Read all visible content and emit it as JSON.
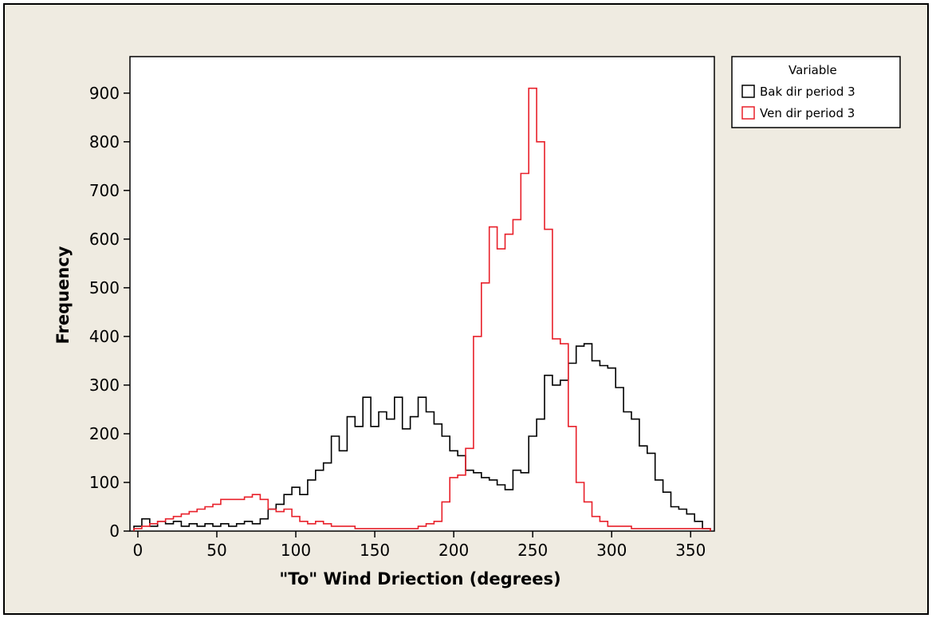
{
  "chart_data": {
    "type": "step-histogram",
    "xlabel": "\"To\" Wind Driection (degrees)",
    "ylabel": "Frequency",
    "xlim": [
      -5,
      365
    ],
    "ylim": [
      0,
      975
    ],
    "xticks": [
      0,
      50,
      100,
      150,
      200,
      250,
      300,
      350
    ],
    "yticks": [
      0,
      100,
      200,
      300,
      400,
      500,
      600,
      700,
      800,
      900
    ],
    "bin_width": 5,
    "legend": {
      "title": "Variable",
      "position": "top-right-outside"
    },
    "colors": {
      "frame_bg": "#efebe1",
      "plot_bg": "#ffffff",
      "axis": "#000000"
    },
    "series": [
      {
        "name": "Bak dir period 3",
        "color": "#000000",
        "x": [
          0,
          5,
          10,
          15,
          20,
          25,
          30,
          35,
          40,
          45,
          50,
          55,
          60,
          65,
          70,
          75,
          80,
          85,
          90,
          95,
          100,
          105,
          110,
          115,
          120,
          125,
          130,
          135,
          140,
          145,
          150,
          155,
          160,
          165,
          170,
          175,
          180,
          185,
          190,
          195,
          200,
          205,
          210,
          215,
          220,
          225,
          230,
          235,
          240,
          245,
          250,
          255,
          260,
          265,
          270,
          275,
          280,
          285,
          290,
          295,
          300,
          305,
          310,
          315,
          320,
          325,
          330,
          335,
          340,
          345,
          350,
          355,
          360
        ],
        "values": [
          10,
          25,
          10,
          20,
          15,
          20,
          10,
          15,
          10,
          15,
          10,
          15,
          10,
          15,
          20,
          15,
          25,
          45,
          55,
          75,
          90,
          75,
          105,
          125,
          140,
          195,
          165,
          235,
          215,
          275,
          215,
          245,
          230,
          275,
          210,
          235,
          275,
          245,
          220,
          195,
          165,
          155,
          125,
          120,
          110,
          105,
          95,
          85,
          125,
          120,
          195,
          230,
          320,
          300,
          310,
          345,
          380,
          385,
          350,
          340,
          335,
          295,
          245,
          230,
          175,
          160,
          105,
          80,
          50,
          45,
          35,
          20,
          5
        ]
      },
      {
        "name": "Ven dir period 3",
        "color": "#e8202a",
        "x": [
          0,
          5,
          10,
          15,
          20,
          25,
          30,
          35,
          40,
          45,
          50,
          55,
          60,
          65,
          70,
          75,
          80,
          85,
          90,
          95,
          100,
          105,
          110,
          115,
          120,
          125,
          130,
          135,
          140,
          145,
          150,
          155,
          160,
          165,
          170,
          175,
          180,
          185,
          190,
          195,
          200,
          205,
          210,
          215,
          220,
          225,
          230,
          235,
          240,
          245,
          250,
          255,
          260,
          265,
          270,
          275,
          280,
          285,
          290,
          295,
          300,
          305,
          310,
          315,
          320,
          325,
          330,
          335,
          340,
          345,
          350,
          355,
          360
        ],
        "values": [
          5,
          10,
          15,
          20,
          25,
          30,
          35,
          40,
          45,
          50,
          55,
          65,
          65,
          65,
          70,
          75,
          65,
          45,
          40,
          45,
          30,
          20,
          15,
          20,
          15,
          10,
          10,
          10,
          5,
          5,
          5,
          5,
          5,
          5,
          5,
          5,
          10,
          15,
          20,
          60,
          110,
          115,
          170,
          400,
          510,
          625,
          580,
          610,
          640,
          735,
          910,
          800,
          620,
          395,
          385,
          215,
          100,
          60,
          30,
          20,
          10,
          10,
          10,
          5,
          5,
          5,
          5,
          5,
          5,
          5,
          5,
          5,
          5
        ]
      }
    ]
  }
}
